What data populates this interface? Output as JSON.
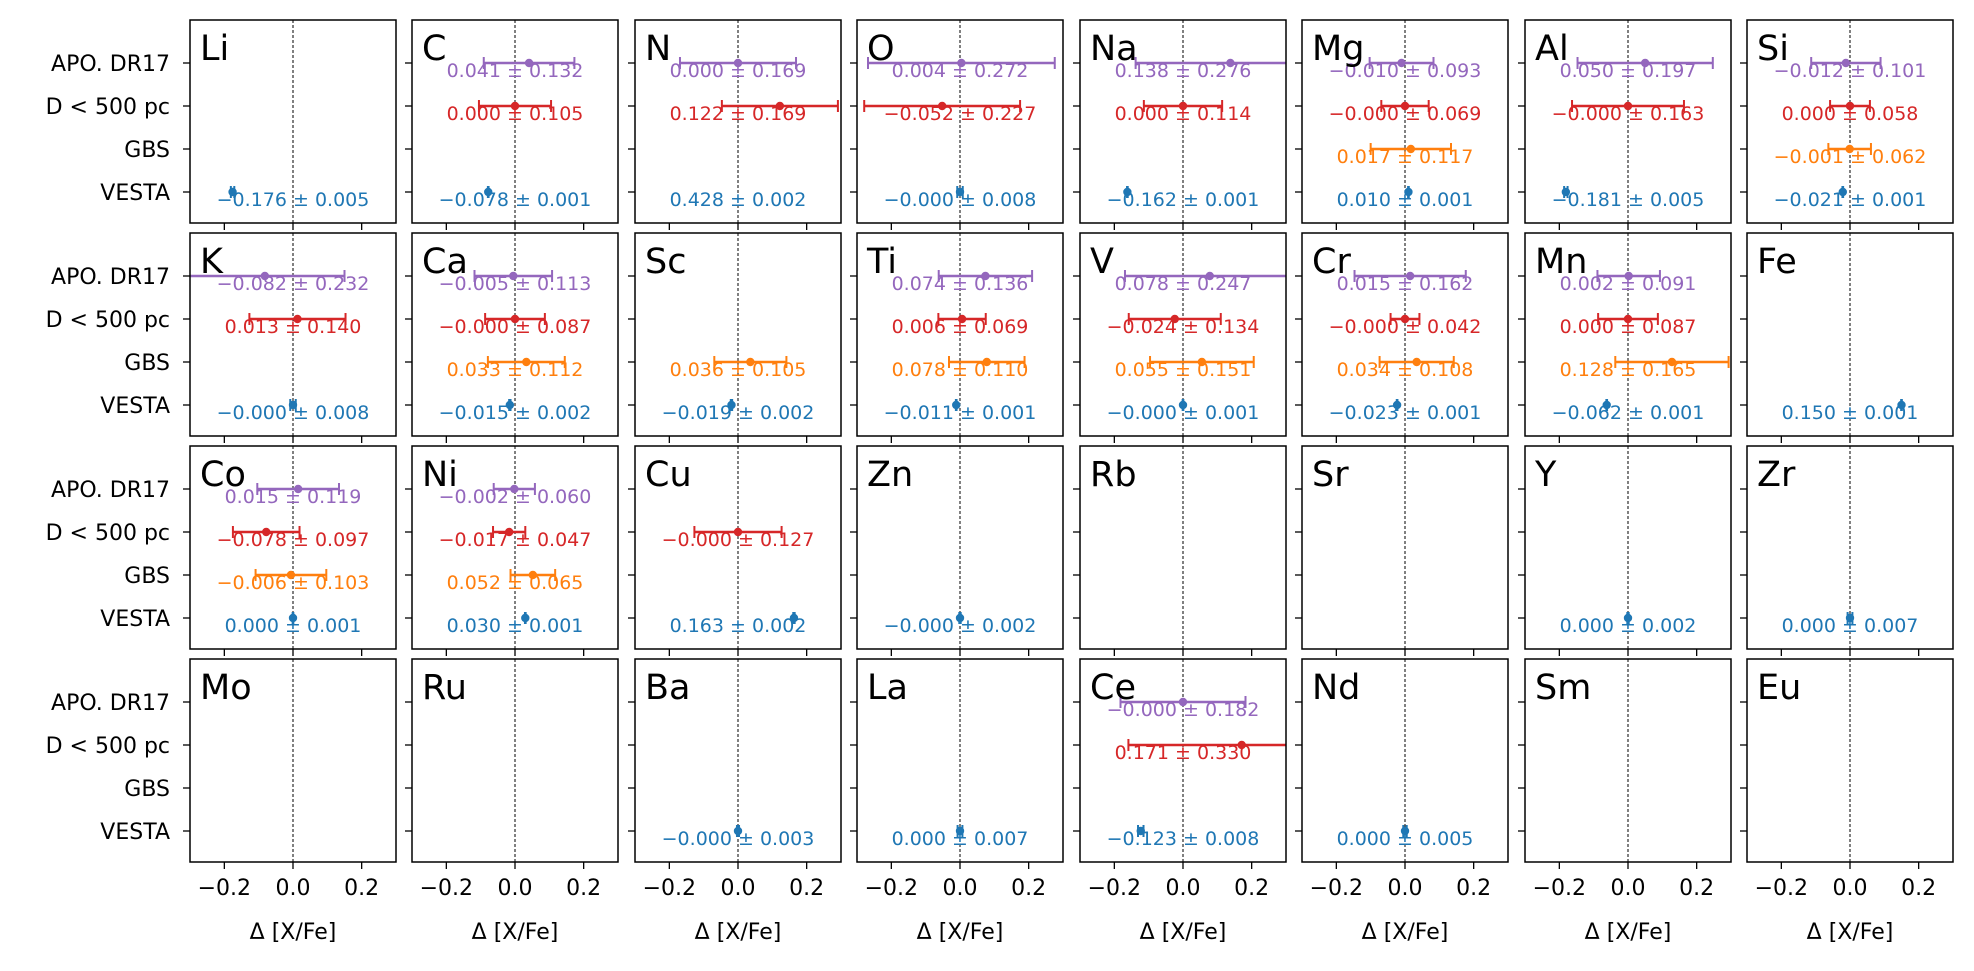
{
  "figure": {
    "x_label": "Δ [X/Fe]",
    "x_ticks": [
      "−0.2",
      "0.0",
      "0.2"
    ],
    "row_labels": [
      "APO. DR17",
      "D < 500 pc",
      "GBS",
      "VESTA"
    ]
  },
  "colors": {
    "APO. DR17": "#9467bd",
    "D < 500 pc": "#d62728",
    "GBS": "#ff7f0e",
    "VESTA": "#1f77b4"
  },
  "chart_data": {
    "type": "scatter",
    "subtype": "errorbar-panel-grid",
    "grid": {
      "rows": 4,
      "cols": 8
    },
    "xlim": [
      -0.3,
      0.3
    ],
    "xticks": [
      -0.2,
      0.0,
      0.2
    ],
    "xlabel": "Δ [X/Fe]",
    "y_categories": [
      "APO. DR17",
      "D < 500 pc",
      "GBS",
      "VESTA"
    ],
    "reference_line": 0.0,
    "panels": [
      {
        "element": "Li",
        "points": [
          {
            "source": "VESTA",
            "x": -0.176,
            "err": 0.005,
            "label": "−0.176 ± 0.005"
          }
        ]
      },
      {
        "element": "C",
        "points": [
          {
            "source": "APO. DR17",
            "x": 0.041,
            "err": 0.132,
            "label": "0.041 ± 0.132"
          },
          {
            "source": "D < 500 pc",
            "x": 0.0,
            "err": 0.105,
            "label": "0.000 ± 0.105"
          },
          {
            "source": "VESTA",
            "x": -0.078,
            "err": 0.001,
            "label": "−0.078 ± 0.001"
          }
        ]
      },
      {
        "element": "N",
        "points": [
          {
            "source": "APO. DR17",
            "x": 0.0,
            "err": 0.169,
            "label": "0.000 ± 0.169"
          },
          {
            "source": "D < 500 pc",
            "x": 0.122,
            "err": 0.169,
            "label": "0.122 ± 0.169"
          },
          {
            "source": "VESTA",
            "x": 0.428,
            "err": 0.002,
            "label": "0.428 ± 0.002"
          }
        ]
      },
      {
        "element": "O",
        "points": [
          {
            "source": "APO. DR17",
            "x": 0.004,
            "err": 0.272,
            "label": "0.004 ± 0.272"
          },
          {
            "source": "D < 500 pc",
            "x": -0.052,
            "err": 0.227,
            "label": "−0.052 ± 0.227"
          },
          {
            "source": "VESTA",
            "x": 0.0,
            "err": 0.008,
            "label": "−0.000 ± 0.008"
          }
        ]
      },
      {
        "element": "Na",
        "points": [
          {
            "source": "APO. DR17",
            "x": 0.138,
            "err": 0.276,
            "label": "0.138 ± 0.276"
          },
          {
            "source": "D < 500 pc",
            "x": 0.0,
            "err": 0.114,
            "label": "0.000 ± 0.114"
          },
          {
            "source": "VESTA",
            "x": -0.162,
            "err": 0.001,
            "label": "−0.162 ± 0.001"
          }
        ]
      },
      {
        "element": "Mg",
        "points": [
          {
            "source": "APO. DR17",
            "x": -0.01,
            "err": 0.093,
            "label": "−0.010 ± 0.093"
          },
          {
            "source": "D < 500 pc",
            "x": 0.0,
            "err": 0.069,
            "label": "−0.000 ± 0.069"
          },
          {
            "source": "GBS",
            "x": 0.017,
            "err": 0.117,
            "label": "0.017 ± 0.117"
          },
          {
            "source": "VESTA",
            "x": 0.01,
            "err": 0.001,
            "label": "0.010 ± 0.001"
          }
        ]
      },
      {
        "element": "Al",
        "points": [
          {
            "source": "APO. DR17",
            "x": 0.05,
            "err": 0.197,
            "label": "0.050 ± 0.197"
          },
          {
            "source": "D < 500 pc",
            "x": 0.0,
            "err": 0.163,
            "label": "−0.000 ± 0.163"
          },
          {
            "source": "VESTA",
            "x": -0.181,
            "err": 0.005,
            "label": "−0.181 ± 0.005"
          }
        ]
      },
      {
        "element": "Si",
        "points": [
          {
            "source": "APO. DR17",
            "x": -0.012,
            "err": 0.101,
            "label": "−0.012 ± 0.101"
          },
          {
            "source": "D < 500 pc",
            "x": 0.0,
            "err": 0.058,
            "label": "0.000 ± 0.058"
          },
          {
            "source": "GBS",
            "x": -0.001,
            "err": 0.062,
            "label": "−0.001 ± 0.062"
          },
          {
            "source": "VESTA",
            "x": -0.021,
            "err": 0.001,
            "label": "−0.021 ± 0.001"
          }
        ]
      },
      {
        "element": "K",
        "points": [
          {
            "source": "APO. DR17",
            "x": -0.082,
            "err": 0.232,
            "label": "−0.082 ± 0.232"
          },
          {
            "source": "D < 500 pc",
            "x": 0.013,
            "err": 0.14,
            "label": "0.013 ± 0.140"
          },
          {
            "source": "VESTA",
            "x": 0.0,
            "err": 0.008,
            "label": "−0.000 ± 0.008"
          }
        ]
      },
      {
        "element": "Ca",
        "points": [
          {
            "source": "APO. DR17",
            "x": -0.005,
            "err": 0.113,
            "label": "−0.005 ± 0.113"
          },
          {
            "source": "D < 500 pc",
            "x": 0.0,
            "err": 0.087,
            "label": "−0.000 ± 0.087"
          },
          {
            "source": "GBS",
            "x": 0.033,
            "err": 0.112,
            "label": "0.033 ± 0.112"
          },
          {
            "source": "VESTA",
            "x": -0.015,
            "err": 0.002,
            "label": "−0.015 ± 0.002"
          }
        ]
      },
      {
        "element": "Sc",
        "points": [
          {
            "source": "GBS",
            "x": 0.036,
            "err": 0.105,
            "label": "0.036 ± 0.105"
          },
          {
            "source": "VESTA",
            "x": -0.019,
            "err": 0.002,
            "label": "−0.019 ± 0.002"
          }
        ]
      },
      {
        "element": "Ti",
        "points": [
          {
            "source": "APO. DR17",
            "x": 0.074,
            "err": 0.136,
            "label": "0.074 ± 0.136"
          },
          {
            "source": "D < 500 pc",
            "x": 0.006,
            "err": 0.069,
            "label": "0.006 ± 0.069"
          },
          {
            "source": "GBS",
            "x": 0.078,
            "err": 0.11,
            "label": "0.078 ± 0.110"
          },
          {
            "source": "VESTA",
            "x": -0.011,
            "err": 0.001,
            "label": "−0.011 ± 0.001"
          }
        ]
      },
      {
        "element": "V",
        "points": [
          {
            "source": "APO. DR17",
            "x": 0.078,
            "err": 0.247,
            "label": "0.078 ± 0.247"
          },
          {
            "source": "D < 500 pc",
            "x": -0.024,
            "err": 0.134,
            "label": "−0.024 ± 0.134"
          },
          {
            "source": "GBS",
            "x": 0.055,
            "err": 0.151,
            "label": "0.055 ± 0.151"
          },
          {
            "source": "VESTA",
            "x": 0.0,
            "err": 0.001,
            "label": "−0.000 ± 0.001"
          }
        ]
      },
      {
        "element": "Cr",
        "points": [
          {
            "source": "APO. DR17",
            "x": 0.015,
            "err": 0.162,
            "label": "0.015 ± 0.162"
          },
          {
            "source": "D < 500 pc",
            "x": 0.0,
            "err": 0.042,
            "label": "−0.000 ± 0.042"
          },
          {
            "source": "GBS",
            "x": 0.034,
            "err": 0.108,
            "label": "0.034 ± 0.108"
          },
          {
            "source": "VESTA",
            "x": -0.023,
            "err": 0.001,
            "label": "−0.023 ± 0.001"
          }
        ]
      },
      {
        "element": "Mn",
        "points": [
          {
            "source": "APO. DR17",
            "x": 0.002,
            "err": 0.091,
            "label": "0.002 ± 0.091"
          },
          {
            "source": "D < 500 pc",
            "x": 0.0,
            "err": 0.087,
            "label": "0.000 ± 0.087"
          },
          {
            "source": "GBS",
            "x": 0.128,
            "err": 0.165,
            "label": "0.128 ± 0.165"
          },
          {
            "source": "VESTA",
            "x": -0.062,
            "err": 0.001,
            "label": "−0.062 ± 0.001"
          }
        ]
      },
      {
        "element": "Fe",
        "points": [
          {
            "source": "VESTA",
            "x": 0.15,
            "err": 0.001,
            "label": "0.150 ± 0.001"
          }
        ]
      },
      {
        "element": "Co",
        "points": [
          {
            "source": "APO. DR17",
            "x": 0.015,
            "err": 0.119,
            "label": "0.015 ± 0.119"
          },
          {
            "source": "D < 500 pc",
            "x": -0.078,
            "err": 0.097,
            "label": "−0.078 ± 0.097"
          },
          {
            "source": "GBS",
            "x": -0.006,
            "err": 0.103,
            "label": "−0.006 ± 0.103"
          },
          {
            "source": "VESTA",
            "x": 0.0,
            "err": 0.001,
            "label": "0.000 ± 0.001"
          }
        ]
      },
      {
        "element": "Ni",
        "points": [
          {
            "source": "APO. DR17",
            "x": -0.002,
            "err": 0.06,
            "label": "−0.002 ± 0.060"
          },
          {
            "source": "D < 500 pc",
            "x": -0.017,
            "err": 0.047,
            "label": "−0.017 ± 0.047"
          },
          {
            "source": "GBS",
            "x": 0.052,
            "err": 0.065,
            "label": "0.052 ± 0.065"
          },
          {
            "source": "VESTA",
            "x": 0.03,
            "err": 0.001,
            "label": "0.030 ± 0.001"
          }
        ]
      },
      {
        "element": "Cu",
        "points": [
          {
            "source": "D < 500 pc",
            "x": 0.0,
            "err": 0.127,
            "label": "−0.000 ± 0.127"
          },
          {
            "source": "VESTA",
            "x": 0.163,
            "err": 0.002,
            "label": "0.163 ± 0.002"
          }
        ]
      },
      {
        "element": "Zn",
        "points": [
          {
            "source": "VESTA",
            "x": 0.0,
            "err": 0.002,
            "label": "−0.000 ± 0.002"
          }
        ]
      },
      {
        "element": "Rb",
        "points": []
      },
      {
        "element": "Sr",
        "points": []
      },
      {
        "element": "Y",
        "points": [
          {
            "source": "VESTA",
            "x": 0.0,
            "err": 0.002,
            "label": "0.000 ± 0.002"
          }
        ]
      },
      {
        "element": "Zr",
        "points": [
          {
            "source": "VESTA",
            "x": 0.0,
            "err": 0.007,
            "label": "0.000 ± 0.007"
          }
        ]
      },
      {
        "element": "Mo",
        "points": []
      },
      {
        "element": "Ru",
        "points": []
      },
      {
        "element": "Ba",
        "points": [
          {
            "source": "VESTA",
            "x": 0.0,
            "err": 0.003,
            "label": "−0.000 ± 0.003"
          }
        ]
      },
      {
        "element": "La",
        "points": [
          {
            "source": "VESTA",
            "x": 0.0,
            "err": 0.007,
            "label": "0.000 ± 0.007"
          }
        ]
      },
      {
        "element": "Ce",
        "points": [
          {
            "source": "APO. DR17",
            "x": 0.0,
            "err": 0.182,
            "label": "−0.000 ± 0.182"
          },
          {
            "source": "D < 500 pc",
            "x": 0.171,
            "err": 0.33,
            "label": "0.171 ± 0.330"
          },
          {
            "source": "VESTA",
            "x": -0.123,
            "err": 0.008,
            "label": "−0.123 ± 0.008"
          }
        ]
      },
      {
        "element": "Nd",
        "points": [
          {
            "source": "VESTA",
            "x": 0.0,
            "err": 0.005,
            "label": "0.000 ± 0.005"
          }
        ]
      },
      {
        "element": "Sm",
        "points": []
      },
      {
        "element": "Eu",
        "points": []
      }
    ]
  }
}
